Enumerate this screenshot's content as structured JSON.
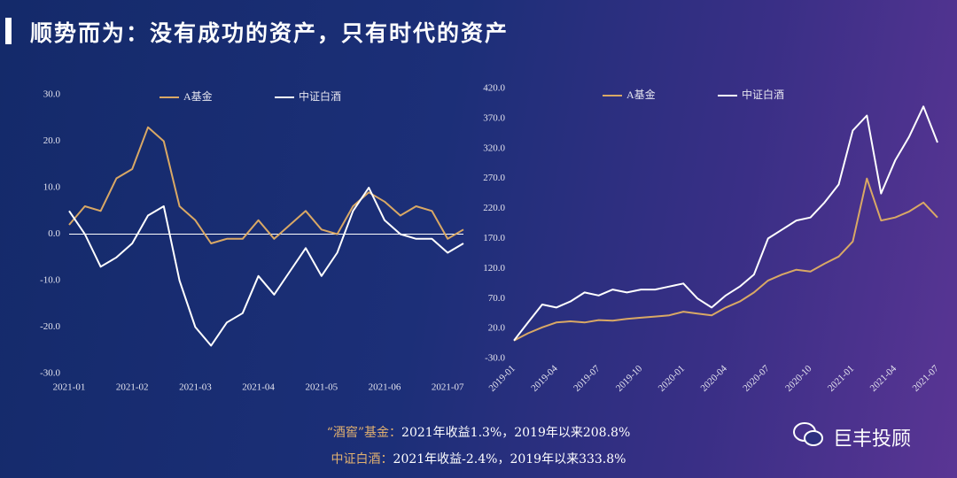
{
  "title": "顺势而为：没有成功的资产，只有时代的资产",
  "chart_data": [
    {
      "type": "line",
      "categories": [
        "2021-01",
        null,
        null,
        null,
        "2021-02",
        null,
        null,
        null,
        "2021-03",
        null,
        null,
        null,
        "2021-04",
        null,
        null,
        null,
        "2021-05",
        null,
        null,
        null,
        "2021-06",
        null,
        null,
        null,
        "2021-07",
        null
      ],
      "series": [
        {
          "name": "A基金",
          "color": "#d9a865",
          "values": [
            2,
            6,
            5,
            12,
            14,
            23,
            20,
            6,
            3,
            -2,
            -1,
            -1,
            3,
            -1,
            2,
            5,
            1,
            0,
            6,
            9,
            7,
            4,
            6,
            5,
            -1,
            1
          ]
        },
        {
          "name": "中证白酒",
          "color": "#ffffff",
          "values": [
            5,
            0,
            -7,
            -5,
            -2,
            4,
            6,
            -10,
            -20,
            -24,
            -19,
            -17,
            -9,
            -13,
            -8,
            -3,
            -9,
            -4,
            5,
            10,
            3,
            0,
            -1,
            -1,
            -4,
            -2
          ]
        }
      ],
      "ylim": [
        -30,
        30
      ],
      "yticks": [
        {
          "value": -30,
          "label": "-30.0"
        },
        {
          "value": -20,
          "label": "-20.0"
        },
        {
          "value": -10,
          "label": "-10.0"
        },
        {
          "value": 0,
          "label": "0.0"
        },
        {
          "value": 10,
          "label": "10.0"
        },
        {
          "value": 20,
          "label": "20.0"
        },
        {
          "value": 30,
          "label": "30.0"
        }
      ],
      "zero_line": true,
      "legend": "top"
    },
    {
      "type": "line",
      "categories": [
        "2019-01",
        null,
        null,
        "2019-04",
        null,
        null,
        "2019-07",
        null,
        null,
        "2019-10",
        null,
        null,
        "2020-01",
        null,
        null,
        "2020-04",
        null,
        null,
        "2020-07",
        null,
        null,
        "2020-10",
        null,
        null,
        "2021-01",
        null,
        null,
        "2021-04",
        null,
        null,
        "2021-07"
      ],
      "series": [
        {
          "name": "A基金",
          "color": "#d9a865",
          "values": [
            0,
            12,
            22,
            30,
            32,
            30,
            34,
            33,
            36,
            38,
            40,
            42,
            48,
            45,
            42,
            55,
            65,
            80,
            100,
            110,
            118,
            115,
            128,
            140,
            165,
            270,
            200,
            205,
            215,
            230,
            205
          ]
        },
        {
          "name": "中证白酒",
          "color": "#ffffff",
          "values": [
            0,
            30,
            60,
            55,
            65,
            80,
            75,
            85,
            80,
            85,
            85,
            90,
            95,
            70,
            55,
            75,
            90,
            110,
            170,
            185,
            200,
            205,
            230,
            260,
            350,
            375,
            245,
            300,
            340,
            390,
            330
          ]
        }
      ],
      "ylim": [
        -30,
        420
      ],
      "yticks": [
        {
          "value": -30,
          "label": "-30.0"
        },
        {
          "value": 20,
          "label": "20.0"
        },
        {
          "value": 70,
          "label": "70.0"
        },
        {
          "value": 120,
          "label": "120.0"
        },
        {
          "value": 170,
          "label": "170.0"
        },
        {
          "value": 220,
          "label": "220.0"
        },
        {
          "value": 270,
          "label": "270.0"
        },
        {
          "value": 320,
          "label": "320.0"
        },
        {
          "value": 370,
          "label": "370.0"
        },
        {
          "value": 420,
          "label": "420.0"
        }
      ],
      "zero_line": false,
      "legend": "top"
    }
  ],
  "notes": [
    {
      "label": "“酒窖”基金：",
      "text": "2021年收益1.3%，2019年以来208.8%"
    },
    {
      "label": "中证白酒：",
      "text": "2021年收益-2.4%，2019年以来333.8%"
    }
  ],
  "brand": "巨丰投顾"
}
